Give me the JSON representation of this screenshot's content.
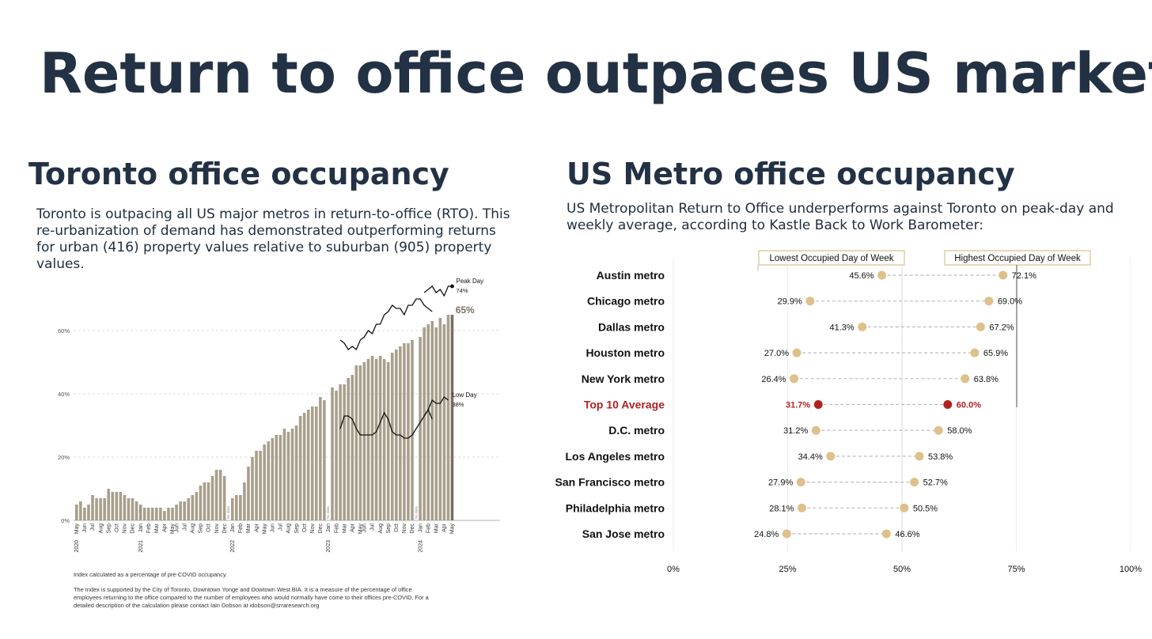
{
  "page": {
    "title": "Return to office outpaces US market"
  },
  "left": {
    "heading": "Toronto office occupancy",
    "description": "Toronto is outpacing all US major metros in return-to-office (RTO). This re-urbanization of demand has demonstrated outperforming returns for urban (416) property values relative to suburban (905) property values.",
    "note1": "Index calculated as a percentage of pre-COVID occupancy.",
    "note2": "The Index is supported by the City of Toronto, Downtown Yonge and Dowtown West BIA. It is a measure of the percentage of office employees returning to the office compared to the number of employees who would normally have come to their offices pre-COVID. For a detailed description of the calculation please contact Iain Dobson at idobson@srraresearch.org"
  },
  "right": {
    "heading": "US Metro office occupancy",
    "description": "US Metropolitan Return to Office underperforms against Toronto on peak-day and weekly average, according to Kastle Back to Work Barometer:"
  },
  "colors": {
    "bar": "#a89f8c",
    "bar_last": "#7a7060",
    "dot": "#dfc08a",
    "highlight": "#b22222",
    "title": "#233144"
  },
  "chart_data": [
    {
      "type": "bar",
      "title": "",
      "ylabel": "",
      "ylim": [
        0,
        72
      ],
      "yticks": [
        "0%",
        "20%",
        "40%",
        "60%"
      ],
      "grid": "horizontal dashed",
      "month_labels": [
        "May",
        "Jun",
        "Jul",
        "Aug",
        "Sep",
        "Oct",
        "Nov",
        "Dec",
        "Jan",
        "Feb",
        "Mar",
        "Apr",
        "May",
        "Jun",
        "Jul",
        "Aug",
        "Sep",
        "Oct",
        "Nov",
        "Dec",
        "Jan",
        "Feb",
        "Mar",
        "Apr",
        "May",
        "Jun",
        "Jul",
        "Aug",
        "Sep",
        "Oct",
        "Nov",
        "Dec",
        "Jan",
        "Feb",
        "Mar",
        "Apr",
        "May",
        "Jun",
        "Jul",
        "Aug",
        "Sep",
        "Oct",
        "Nov",
        "Dec",
        "Jan",
        "Feb",
        "Mar",
        "Apr",
        "May"
      ],
      "year_labels": [
        {
          "label": "2020",
          "index": 0
        },
        {
          "label": "2021",
          "index": 8
        },
        {
          "label": "2022",
          "index": 20
        },
        {
          "label": "2023",
          "index": 32
        },
        {
          "label": "2024",
          "index": 44
        }
      ],
      "values": [
        5,
        6,
        4,
        5,
        8,
        7,
        7,
        7,
        10,
        9,
        9,
        9,
        8,
        7,
        7,
        6,
        5,
        4,
        4,
        4,
        4,
        4,
        3,
        4,
        4,
        5,
        6,
        6,
        7,
        8,
        9,
        11,
        12,
        12,
        14,
        16,
        16,
        14,
        0,
        7,
        8,
        8,
        12,
        17,
        20,
        22,
        22,
        24,
        25,
        26,
        27,
        27,
        29,
        28,
        29,
        30,
        33,
        34,
        35,
        36,
        36,
        39,
        38,
        0,
        42,
        41,
        43,
        43,
        45,
        46,
        49,
        49,
        50,
        51,
        52,
        51,
        52,
        51,
        50,
        53,
        54,
        55,
        56,
        56,
        57,
        0,
        58,
        61,
        62,
        63,
        61,
        64,
        62,
        65,
        65
      ],
      "no_data_label": "No data",
      "no_data_note_count": 6,
      "last_value_label": "65%",
      "series": [
        {
          "name": "Peak Day",
          "label": "74%",
          "segments": [
            [
              57,
              56,
              54,
              55,
              54,
              57,
              58,
              60,
              59,
              62,
              62,
              65,
              66,
              68,
              67,
              67,
              65,
              68,
              68,
              70,
              70,
              68,
              67,
              66
            ],
            [
              72,
              73,
              74,
              72,
              73,
              71,
              74,
              74
            ]
          ]
        },
        {
          "name": "Low Day",
          "label": "38%",
          "segments": [
            [
              29,
              33,
              33,
              32,
              29,
              27,
              27,
              27,
              27,
              28,
              31,
              34,
              32,
              28,
              27,
              27,
              26,
              26,
              27,
              29,
              31,
              33,
              35,
              32
            ],
            [
              33,
              35,
              38,
              37,
              37,
              39,
              38
            ]
          ]
        }
      ]
    },
    {
      "type": "dot-range",
      "legend": [
        "Lowest Occupied Day of Week",
        "Highest Occupied Day of Week"
      ],
      "xlim": [
        0,
        100
      ],
      "xticks": [
        "0%",
        "25%",
        "50%",
        "75%",
        "100%"
      ],
      "rows": [
        {
          "name": "Austin metro",
          "low": 45.6,
          "high": 72.1,
          "low_label": "45.6%",
          "high_label": "72.1%",
          "highlight": false
        },
        {
          "name": "Chicago metro",
          "low": 29.9,
          "high": 69.0,
          "low_label": "29.9%",
          "high_label": "69.0%",
          "highlight": false
        },
        {
          "name": "Dallas metro",
          "low": 41.3,
          "high": 67.2,
          "low_label": "41.3%",
          "high_label": "67.2%",
          "highlight": false
        },
        {
          "name": "Houston metro",
          "low": 27.0,
          "high": 65.9,
          "low_label": "27.0%",
          "high_label": "65.9%",
          "highlight": false
        },
        {
          "name": "New York metro",
          "low": 26.4,
          "high": 63.8,
          "low_label": "26.4%",
          "high_label": "63.8%",
          "highlight": false
        },
        {
          "name": "Top 10 Average",
          "low": 31.7,
          "high": 60.0,
          "low_label": "31.7%",
          "high_label": "60.0%",
          "highlight": true
        },
        {
          "name": "D.C. metro",
          "low": 31.2,
          "high": 58.0,
          "low_label": "31.2%",
          "high_label": "58.0%",
          "highlight": false
        },
        {
          "name": "Los Angeles metro",
          "low": 34.4,
          "high": 53.8,
          "low_label": "34.4%",
          "high_label": "53.8%",
          "highlight": false
        },
        {
          "name": "San Francisco metro",
          "low": 27.9,
          "high": 52.7,
          "low_label": "27.9%",
          "high_label": "52.7%",
          "highlight": false
        },
        {
          "name": "Philadelphia metro",
          "low": 28.1,
          "high": 50.5,
          "low_label": "28.1%",
          "high_label": "50.5%",
          "highlight": false
        },
        {
          "name": "San Jose metro",
          "low": 24.8,
          "high": 46.6,
          "low_label": "24.8%",
          "high_label": "46.6%",
          "highlight": false
        }
      ]
    }
  ]
}
